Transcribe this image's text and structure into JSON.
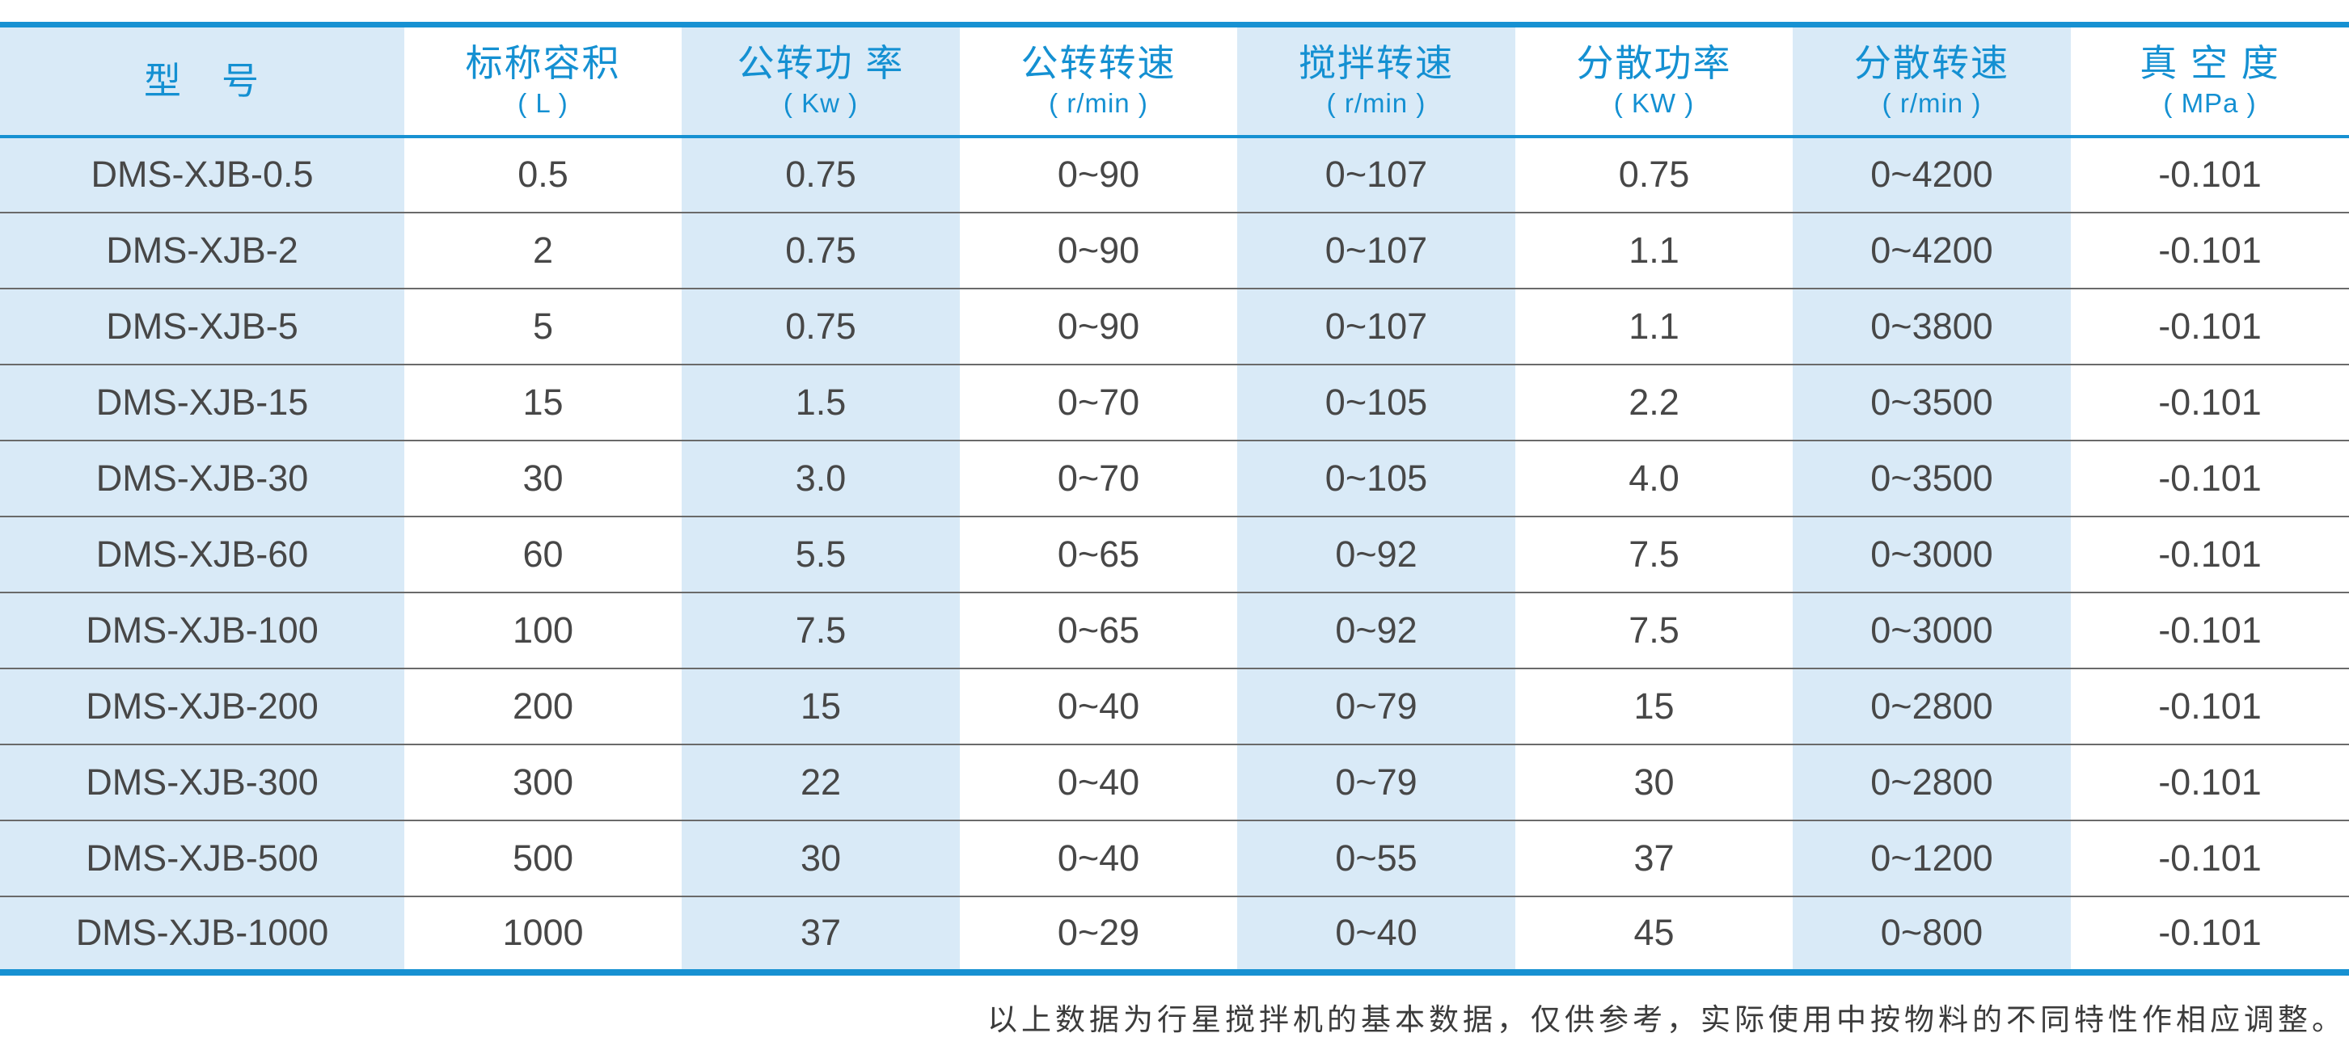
{
  "table": {
    "columns": [
      {
        "title": "型　号",
        "unit": ""
      },
      {
        "title": "标称容积",
        "unit": "( L )"
      },
      {
        "title": "公转功 率",
        "unit": "( Kw )"
      },
      {
        "title": "公转转速",
        "unit": "( r/min )"
      },
      {
        "title": "搅拌转速",
        "unit": "( r/min )"
      },
      {
        "title": "分散功率",
        "unit": "( KW )"
      },
      {
        "title": "分散转速",
        "unit": "( r/min )"
      },
      {
        "title": "真 空 度",
        "unit": "( MPa )"
      }
    ],
    "rows": [
      [
        "DMS-XJB-0.5",
        "0.5",
        "0.75",
        "0~90",
        "0~107",
        "0.75",
        "0~4200",
        "-0.101"
      ],
      [
        "DMS-XJB-2",
        "2",
        "0.75",
        "0~90",
        "0~107",
        "1.1",
        "0~4200",
        "-0.101"
      ],
      [
        "DMS-XJB-5",
        "5",
        "0.75",
        "0~90",
        "0~107",
        "1.1",
        "0~3800",
        "-0.101"
      ],
      [
        "DMS-XJB-15",
        "15",
        "1.5",
        "0~70",
        "0~105",
        "2.2",
        "0~3500",
        "-0.101"
      ],
      [
        "DMS-XJB-30",
        "30",
        "3.0",
        "0~70",
        "0~105",
        "4.0",
        "0~3500",
        "-0.101"
      ],
      [
        "DMS-XJB-60",
        "60",
        "5.5",
        "0~65",
        "0~92",
        "7.5",
        "0~3000",
        "-0.101"
      ],
      [
        "DMS-XJB-100",
        "100",
        "7.5",
        "0~65",
        "0~92",
        "7.5",
        "0~3000",
        "-0.101"
      ],
      [
        "DMS-XJB-200",
        "200",
        "15",
        "0~40",
        "0~79",
        "15",
        "0~2800",
        "-0.101"
      ],
      [
        "DMS-XJB-300",
        "300",
        "22",
        "0~40",
        "0~79",
        "30",
        "0~2800",
        "-0.101"
      ],
      [
        "DMS-XJB-500",
        "500",
        "30",
        "0~40",
        "0~55",
        "37",
        "0~1200",
        "-0.101"
      ],
      [
        "DMS-XJB-1000",
        "1000",
        "37",
        "0~29",
        "0~40",
        "45",
        "0~800",
        "-0.101"
      ]
    ]
  },
  "footer": {
    "note": "以上数据为行星搅拌机的基本数据，仅供参考，实际使用中按物料的不同特性作相应调整。"
  },
  "colors": {
    "accent_blue": "#1791d2",
    "header_text_blue": "#1490d2",
    "stripe_light_blue": "#d9eaf7",
    "body_text": "#474747",
    "row_separator": "#6a6a6a"
  }
}
